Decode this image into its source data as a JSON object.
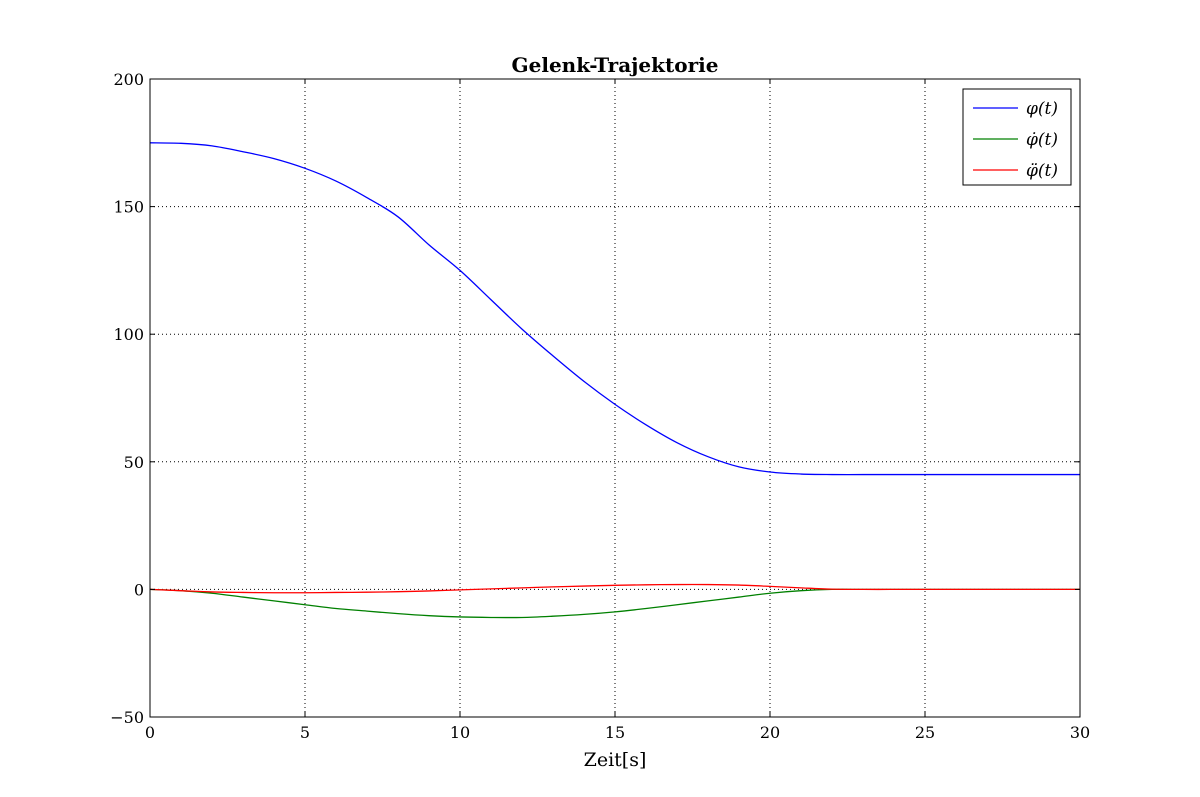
{
  "chart_data": {
    "type": "line",
    "title": "Gelenk-Trajektorie",
    "xlabel": "Zeit[s]",
    "ylabel": "",
    "xlim": [
      0,
      30
    ],
    "ylim": [
      -50,
      200
    ],
    "xticks": [
      0,
      5,
      10,
      15,
      20,
      25,
      30
    ],
    "yticks": [
      -50,
      0,
      50,
      100,
      150,
      200
    ],
    "xtick_labels": [
      "0",
      "5",
      "10",
      "15",
      "20",
      "25",
      "30"
    ],
    "ytick_labels": [
      "−50",
      "0",
      "50",
      "100",
      "150",
      "200"
    ],
    "grid": true,
    "legend_position": "top-right",
    "x": [
      0,
      1,
      2,
      3,
      4,
      5,
      6,
      7,
      8,
      9,
      10,
      11,
      12,
      13,
      14,
      15,
      16,
      17,
      18,
      19,
      20,
      21,
      22,
      23,
      24,
      25,
      26,
      27,
      28,
      29,
      30
    ],
    "series": [
      {
        "name": "φ(t)",
        "color": "#0000ff",
        "values": [
          175,
          174.8,
          173.8,
          171.5,
          168.8,
          165,
          160,
          153.5,
          146,
          135,
          125,
          113.5,
          102,
          91.5,
          81.5,
          72.5,
          64.5,
          57.5,
          52,
          48,
          46,
          45.2,
          45,
          45,
          45,
          45,
          45,
          45,
          45,
          45,
          45
        ]
      },
      {
        "name": "φ̇(t)",
        "color": "#008000",
        "values": [
          0,
          -0.5,
          -1.5,
          -3,
          -4.5,
          -6,
          -7.5,
          -8.5,
          -9.5,
          -10.3,
          -10.8,
          -11,
          -11,
          -10.5,
          -9.8,
          -8.8,
          -7.5,
          -6,
          -4.5,
          -3,
          -1.5,
          -0.5,
          0,
          0,
          0,
          0,
          0,
          0,
          0,
          0,
          0
        ]
      },
      {
        "name": "φ̈(t)",
        "color": "#ff0000",
        "values": [
          0,
          -0.5,
          -1,
          -1.2,
          -1.3,
          -1.3,
          -1.2,
          -1.1,
          -0.9,
          -0.6,
          -0.2,
          0.2,
          0.6,
          1,
          1.3,
          1.6,
          1.8,
          1.9,
          1.9,
          1.7,
          1.2,
          0.6,
          0.1,
          0,
          0,
          0,
          0,
          0,
          0,
          0,
          0
        ]
      }
    ]
  }
}
